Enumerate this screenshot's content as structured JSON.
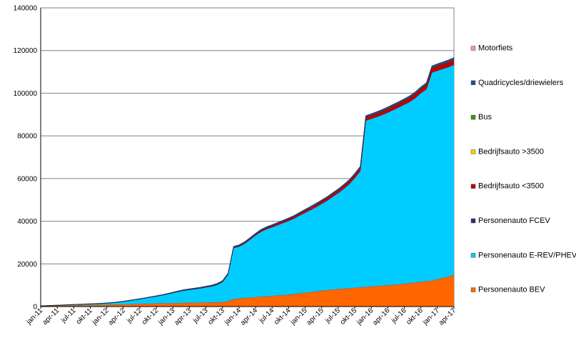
{
  "chart_data": {
    "type": "area",
    "stacked": true,
    "grid": "horizontal",
    "legend_position": "right",
    "ylim": [
      0,
      140000
    ],
    "yticks": [
      0,
      20000,
      40000,
      60000,
      80000,
      100000,
      120000,
      140000
    ],
    "ytick_labels": [
      "0",
      "20000",
      "40000",
      "60000",
      "80000",
      "100000",
      "120000",
      "140000"
    ],
    "x": [
      "jan-11",
      "feb-11",
      "mrt-11",
      "apr-11",
      "mei-11",
      "jun-11",
      "jul-11",
      "aug-11",
      "sep-11",
      "okt-11",
      "nov-11",
      "dec-11",
      "jan-12",
      "feb-12",
      "mrt-12",
      "apr-12",
      "mei-12",
      "jun-12",
      "jul-12",
      "aug-12",
      "sep-12",
      "okt-12",
      "nov-12",
      "dec-12",
      "jan-13",
      "feb-13",
      "mrt-13",
      "apr-13",
      "mei-13",
      "jun-13",
      "jul-13",
      "aug-13",
      "sep-13",
      "okt-13",
      "nov-13",
      "dec-13",
      "jan-14",
      "feb-14",
      "mrt-14",
      "apr-14",
      "mei-14",
      "jun-14",
      "jul-14",
      "aug-14",
      "sep-14",
      "okt-14",
      "nov-14",
      "dec-14",
      "jan-15",
      "feb-15",
      "mrt-15",
      "apr-15",
      "mei-15",
      "jun-15",
      "jul-15",
      "aug-15",
      "sep-15",
      "okt-15",
      "nov-15",
      "dec-15",
      "jan-16",
      "feb-16",
      "mrt-16",
      "apr-16",
      "mei-16",
      "jun-16",
      "jul-16",
      "aug-16",
      "sep-16",
      "okt-16",
      "nov-16",
      "dec-16",
      "jan-17",
      "feb-17",
      "mrt-17",
      "apr-17"
    ],
    "x_tick_labels": [
      "jan-11",
      "apr-11",
      "jul-11",
      "okt-11",
      "jan-12",
      "apr-12",
      "jul-12",
      "okt-12",
      "jan-13",
      "apr-13",
      "jul-13",
      "okt-13",
      "jan-14",
      "apr-14",
      "jul-14",
      "okt-14",
      "jan-15",
      "apr-15",
      "jul-15",
      "okt-15",
      "jan-16",
      "apr-16",
      "jul-16",
      "okt-16",
      "jan-17",
      "apr-17"
    ],
    "series": [
      {
        "name": "Personenauto BEV",
        "color": "#ff6600",
        "values": [
          300,
          350,
          400,
          450,
          500,
          550,
          600,
          650,
          700,
          750,
          800,
          850,
          900,
          950,
          1000,
          1050,
          1100,
          1200,
          1300,
          1350,
          1400,
          1450,
          1500,
          1550,
          1600,
          1650,
          1700,
          1750,
          1800,
          1850,
          1900,
          1950,
          2000,
          2100,
          2500,
          3500,
          3800,
          4000,
          4200,
          4400,
          4600,
          4800,
          5000,
          5200,
          5400,
          5600,
          5800,
          6200,
          6500,
          6800,
          7100,
          7400,
          7700,
          8000,
          8200,
          8400,
          8600,
          8800,
          9000,
          9200,
          9400,
          9600,
          9800,
          10000,
          10200,
          10400,
          10700,
          11000,
          11300,
          11600,
          11900,
          12200,
          12800,
          13400,
          14000,
          14800
        ]
      },
      {
        "name": "Personenauto E-REV/PHEV",
        "color": "#00ccff",
        "values": [
          0,
          50,
          100,
          150,
          200,
          250,
          300,
          350,
          400,
          450,
          500,
          550,
          650,
          800,
          1000,
          1300,
          1600,
          1900,
          2200,
          2600,
          3000,
          3400,
          3800,
          4300,
          4800,
          5300,
          5800,
          6100,
          6400,
          6700,
          7100,
          7500,
          8200,
          9400,
          12500,
          24000,
          24300,
          25500,
          27200,
          29000,
          30500,
          31500,
          32200,
          33000,
          33800,
          34600,
          35500,
          36500,
          37500,
          38500,
          39600,
          40800,
          42000,
          43500,
          45000,
          46800,
          48800,
          51500,
          54500,
          78000,
          78600,
          79300,
          80100,
          81000,
          82000,
          83000,
          84000,
          85000,
          86500,
          88500,
          90000,
          97500,
          97800,
          98000,
          98300,
          98500
        ]
      },
      {
        "name": "Personenauto FCEV",
        "color": "#2a2b7e",
        "values": [
          0,
          0,
          0,
          0,
          0,
          0,
          0,
          0,
          0,
          0,
          0,
          0,
          0,
          0,
          0,
          0,
          0,
          0,
          0,
          0,
          0,
          0,
          0,
          0,
          0,
          0,
          0,
          0,
          0,
          0,
          0,
          0,
          0,
          0,
          0,
          0,
          0,
          0,
          0,
          0,
          0,
          0,
          0,
          0,
          0,
          0,
          0,
          0,
          0,
          0,
          0,
          0,
          0,
          0,
          0,
          0,
          0,
          0,
          0,
          0,
          0,
          0,
          0,
          0,
          0,
          0,
          0,
          0,
          0,
          0,
          0,
          0,
          0,
          0,
          0,
          0
        ]
      },
      {
        "name": "Bedrijfsauto <3500",
        "color": "#c00000",
        "values": [
          0,
          0,
          0,
          0,
          0,
          0,
          0,
          0,
          0,
          0,
          0,
          0,
          0,
          0,
          0,
          0,
          0,
          0,
          0,
          0,
          0,
          0,
          0,
          0,
          100,
          120,
          140,
          160,
          180,
          200,
          220,
          240,
          260,
          280,
          300,
          320,
          400,
          450,
          500,
          550,
          600,
          650,
          700,
          750,
          800,
          850,
          900,
          950,
          1000,
          1050,
          1100,
          1150,
          1200,
          1250,
          1300,
          1350,
          1400,
          1450,
          1500,
          1550,
          1600,
          1650,
          1700,
          1750,
          1800,
          1850,
          1900,
          1950,
          2000,
          2050,
          2100,
          2200,
          2250,
          2300,
          2350,
          2400
        ]
      },
      {
        "name": "Bedrijfsauto >3500",
        "color": "#ffcc00",
        "values": [
          0,
          0,
          0,
          0,
          0,
          0,
          0,
          0,
          0,
          0,
          0,
          0,
          0,
          0,
          0,
          0,
          0,
          0,
          0,
          0,
          0,
          0,
          0,
          0,
          0,
          0,
          0,
          0,
          0,
          0,
          0,
          0,
          0,
          0,
          0,
          0,
          0,
          0,
          0,
          0,
          0,
          0,
          0,
          0,
          0,
          0,
          0,
          0,
          20,
          20,
          20,
          20,
          20,
          20,
          20,
          20,
          20,
          20,
          20,
          20,
          20,
          20,
          20,
          20,
          20,
          20,
          20,
          20,
          20,
          20,
          20,
          20,
          20,
          20,
          20,
          20
        ]
      },
      {
        "name": "Bus",
        "color": "#339900",
        "values": [
          0,
          0,
          0,
          0,
          0,
          0,
          0,
          0,
          0,
          0,
          0,
          0,
          0,
          0,
          0,
          0,
          0,
          0,
          0,
          0,
          0,
          0,
          0,
          0,
          0,
          0,
          0,
          0,
          0,
          0,
          0,
          0,
          0,
          0,
          0,
          0,
          0,
          0,
          0,
          0,
          0,
          0,
          0,
          0,
          0,
          0,
          0,
          0,
          50,
          50,
          50,
          50,
          50,
          50,
          50,
          50,
          50,
          50,
          50,
          50,
          100,
          100,
          100,
          100,
          100,
          100,
          100,
          100,
          100,
          100,
          100,
          100,
          150,
          150,
          150,
          150
        ]
      },
      {
        "name": "Quadricycles/driewielers",
        "color": "#1f4e96",
        "values": [
          50,
          60,
          70,
          80,
          90,
          100,
          110,
          120,
          130,
          140,
          150,
          160,
          170,
          180,
          190,
          200,
          210,
          220,
          230,
          240,
          250,
          260,
          270,
          280,
          290,
          300,
          310,
          320,
          330,
          340,
          350,
          360,
          370,
          380,
          390,
          400,
          410,
          420,
          430,
          440,
          450,
          460,
          470,
          480,
          490,
          500,
          510,
          520,
          530,
          540,
          550,
          560,
          570,
          580,
          590,
          600,
          610,
          620,
          630,
          640,
          650,
          660,
          670,
          680,
          690,
          700,
          710,
          720,
          730,
          740,
          750,
          760,
          770,
          780,
          790,
          800
        ]
      },
      {
        "name": "Motorfiets",
        "color": "#e79a9a",
        "values": [
          0,
          0,
          0,
          0,
          0,
          0,
          0,
          0,
          0,
          0,
          0,
          0,
          0,
          0,
          0,
          0,
          0,
          0,
          0,
          0,
          0,
          0,
          0,
          0,
          0,
          0,
          0,
          0,
          0,
          0,
          0,
          0,
          0,
          0,
          0,
          0,
          0,
          0,
          0,
          0,
          0,
          0,
          0,
          0,
          0,
          0,
          0,
          0,
          0,
          0,
          0,
          0,
          0,
          0,
          0,
          0,
          0,
          0,
          0,
          0,
          0,
          0,
          0,
          0,
          0,
          0,
          0,
          0,
          0,
          0,
          0,
          0,
          0,
          0,
          0,
          0
        ]
      }
    ],
    "legend": [
      "Motorfiets",
      "Quadricycles/driewielers",
      "Bus",
      "Bedrijfsauto >3500",
      "Bedrijfsauto <3500",
      "Personenauto FCEV",
      "Personenauto E-REV/PHEV",
      "Personenauto BEV"
    ]
  }
}
